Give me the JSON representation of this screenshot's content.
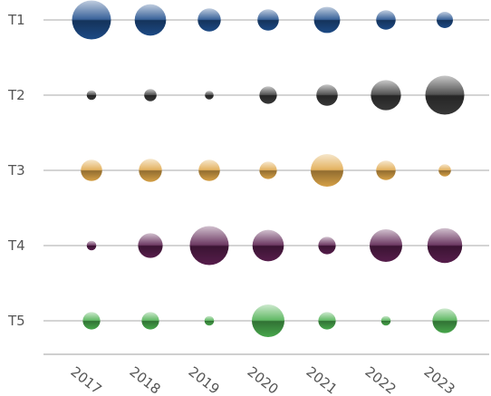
{
  "chart_data": {
    "type": "bubble",
    "title": "",
    "xlabel": "",
    "ylabel": "",
    "grid": true,
    "x": [
      "2017",
      "2018",
      "2019",
      "2020",
      "2021",
      "2022",
      "2023"
    ],
    "rows": [
      {
        "label": "T1",
        "color": "#1f4e8c",
        "values": [
          20,
          13,
          7,
          6,
          9,
          5,
          3.5
        ]
      },
      {
        "label": "T2",
        "color": "#3a3a3a",
        "values": [
          1.2,
          2,
          1,
          4,
          6,
          12,
          20
        ]
      },
      {
        "label": "T3",
        "color": "#e0a84a",
        "values": [
          6,
          7,
          6,
          4,
          14,
          5,
          2
        ]
      },
      {
        "label": "T4",
        "color": "#5a1f4f",
        "values": [
          1.2,
          8,
          20,
          13,
          4,
          14,
          16
        ]
      },
      {
        "label": "T5",
        "color": "#4cb050",
        "values": [
          4,
          4,
          1.2,
          14,
          4,
          1.2,
          8
        ]
      }
    ]
  }
}
